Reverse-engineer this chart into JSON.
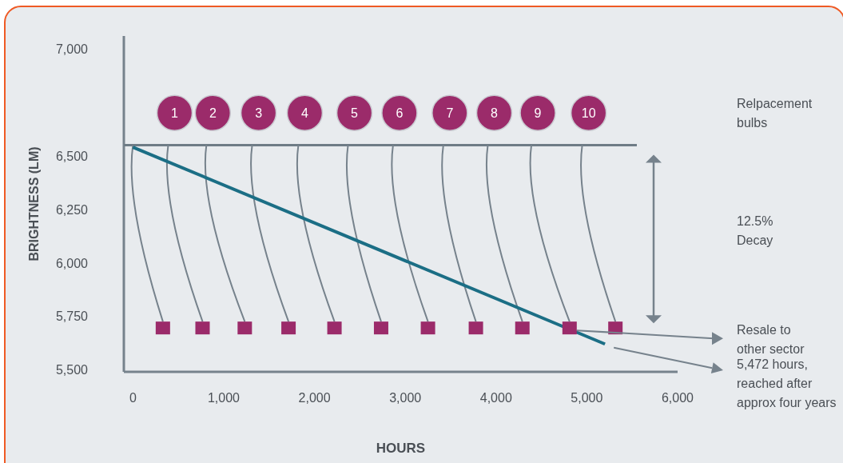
{
  "chart_data": {
    "type": "line",
    "xlabel": "HOURS",
    "ylabel": "BRIGHTNESS (LM)",
    "xlim": [
      -100,
      6000
    ],
    "ylim": [
      5490,
      7060
    ],
    "xticks": [
      0,
      {
        "value": 1000,
        "label": "1,000"
      },
      {
        "value": 2000,
        "label": "2,000"
      },
      {
        "value": 3000,
        "label": "3,000"
      },
      {
        "value": 4000,
        "label": "4,000"
      },
      {
        "value": 5000,
        "label": "5,000"
      },
      {
        "value": 6000,
        "label": "6,000"
      }
    ],
    "yticks": [
      {
        "value": 5500,
        "label": "5,500"
      },
      {
        "value": 5750,
        "label": "5,750"
      },
      {
        "value": 6000,
        "label": "6,000"
      },
      {
        "value": 6250,
        "label": "6,250"
      },
      {
        "value": 6500,
        "label": "6,500"
      },
      {
        "value": 7000,
        "label": "7,000"
      }
    ],
    "grid": false,
    "series": [
      {
        "color": "#1b6e85",
        "x": [
          0,
          5200
        ],
        "values": [
          6540,
          5620
        ]
      },
      {
        "type": "scatter",
        "marker": "circle",
        "color": "#9b2b6a",
        "x": [
          459,
          880,
          1384,
          1893,
          2440,
          2936,
          3490,
          3980,
          4460,
          5020
        ],
        "values": [
          6700,
          6700,
          6700,
          6700,
          6700,
          6700,
          6700,
          6700,
          6700,
          6700
        ]
      },
      {
        "type": "scatter",
        "marker": "square",
        "color": "#9b2b6a",
        "x": [
          330,
          767,
          1232,
          1714,
          2220,
          2734,
          3250,
          3778,
          4290,
          4810,
          5315
        ],
        "values": [
          5695,
          5695,
          5695,
          5695,
          5695,
          5695,
          5695,
          5695,
          5695,
          5695,
          5695
        ]
      }
    ],
    "ref_lines": [
      {
        "axis": "y",
        "value": 6550,
        "color": "#6f7c86"
      }
    ],
    "annotations": [
      {
        "text": "1",
        "x": 459,
        "y": 6700
      },
      {
        "text": "2",
        "x": 880,
        "y": 6700
      },
      {
        "text": "3",
        "x": 1384,
        "y": 6700
      },
      {
        "text": "4",
        "x": 1893,
        "y": 6700
      },
      {
        "text": "5",
        "x": 2440,
        "y": 6700
      },
      {
        "text": "6",
        "x": 2936,
        "y": 6700
      },
      {
        "text": "7",
        "x": 3490,
        "y": 6700
      },
      {
        "text": "8",
        "x": 3980,
        "y": 6700
      },
      {
        "text": "9",
        "x": 4460,
        "y": 6700
      },
      {
        "text": "10",
        "x": 5020,
        "y": 6700
      },
      "Relpacement\nbulbs",
      "12.5%\nDecay",
      "Resale to\nother sector",
      "5,472 hours,\nreached after\napprox four years"
    ]
  }
}
